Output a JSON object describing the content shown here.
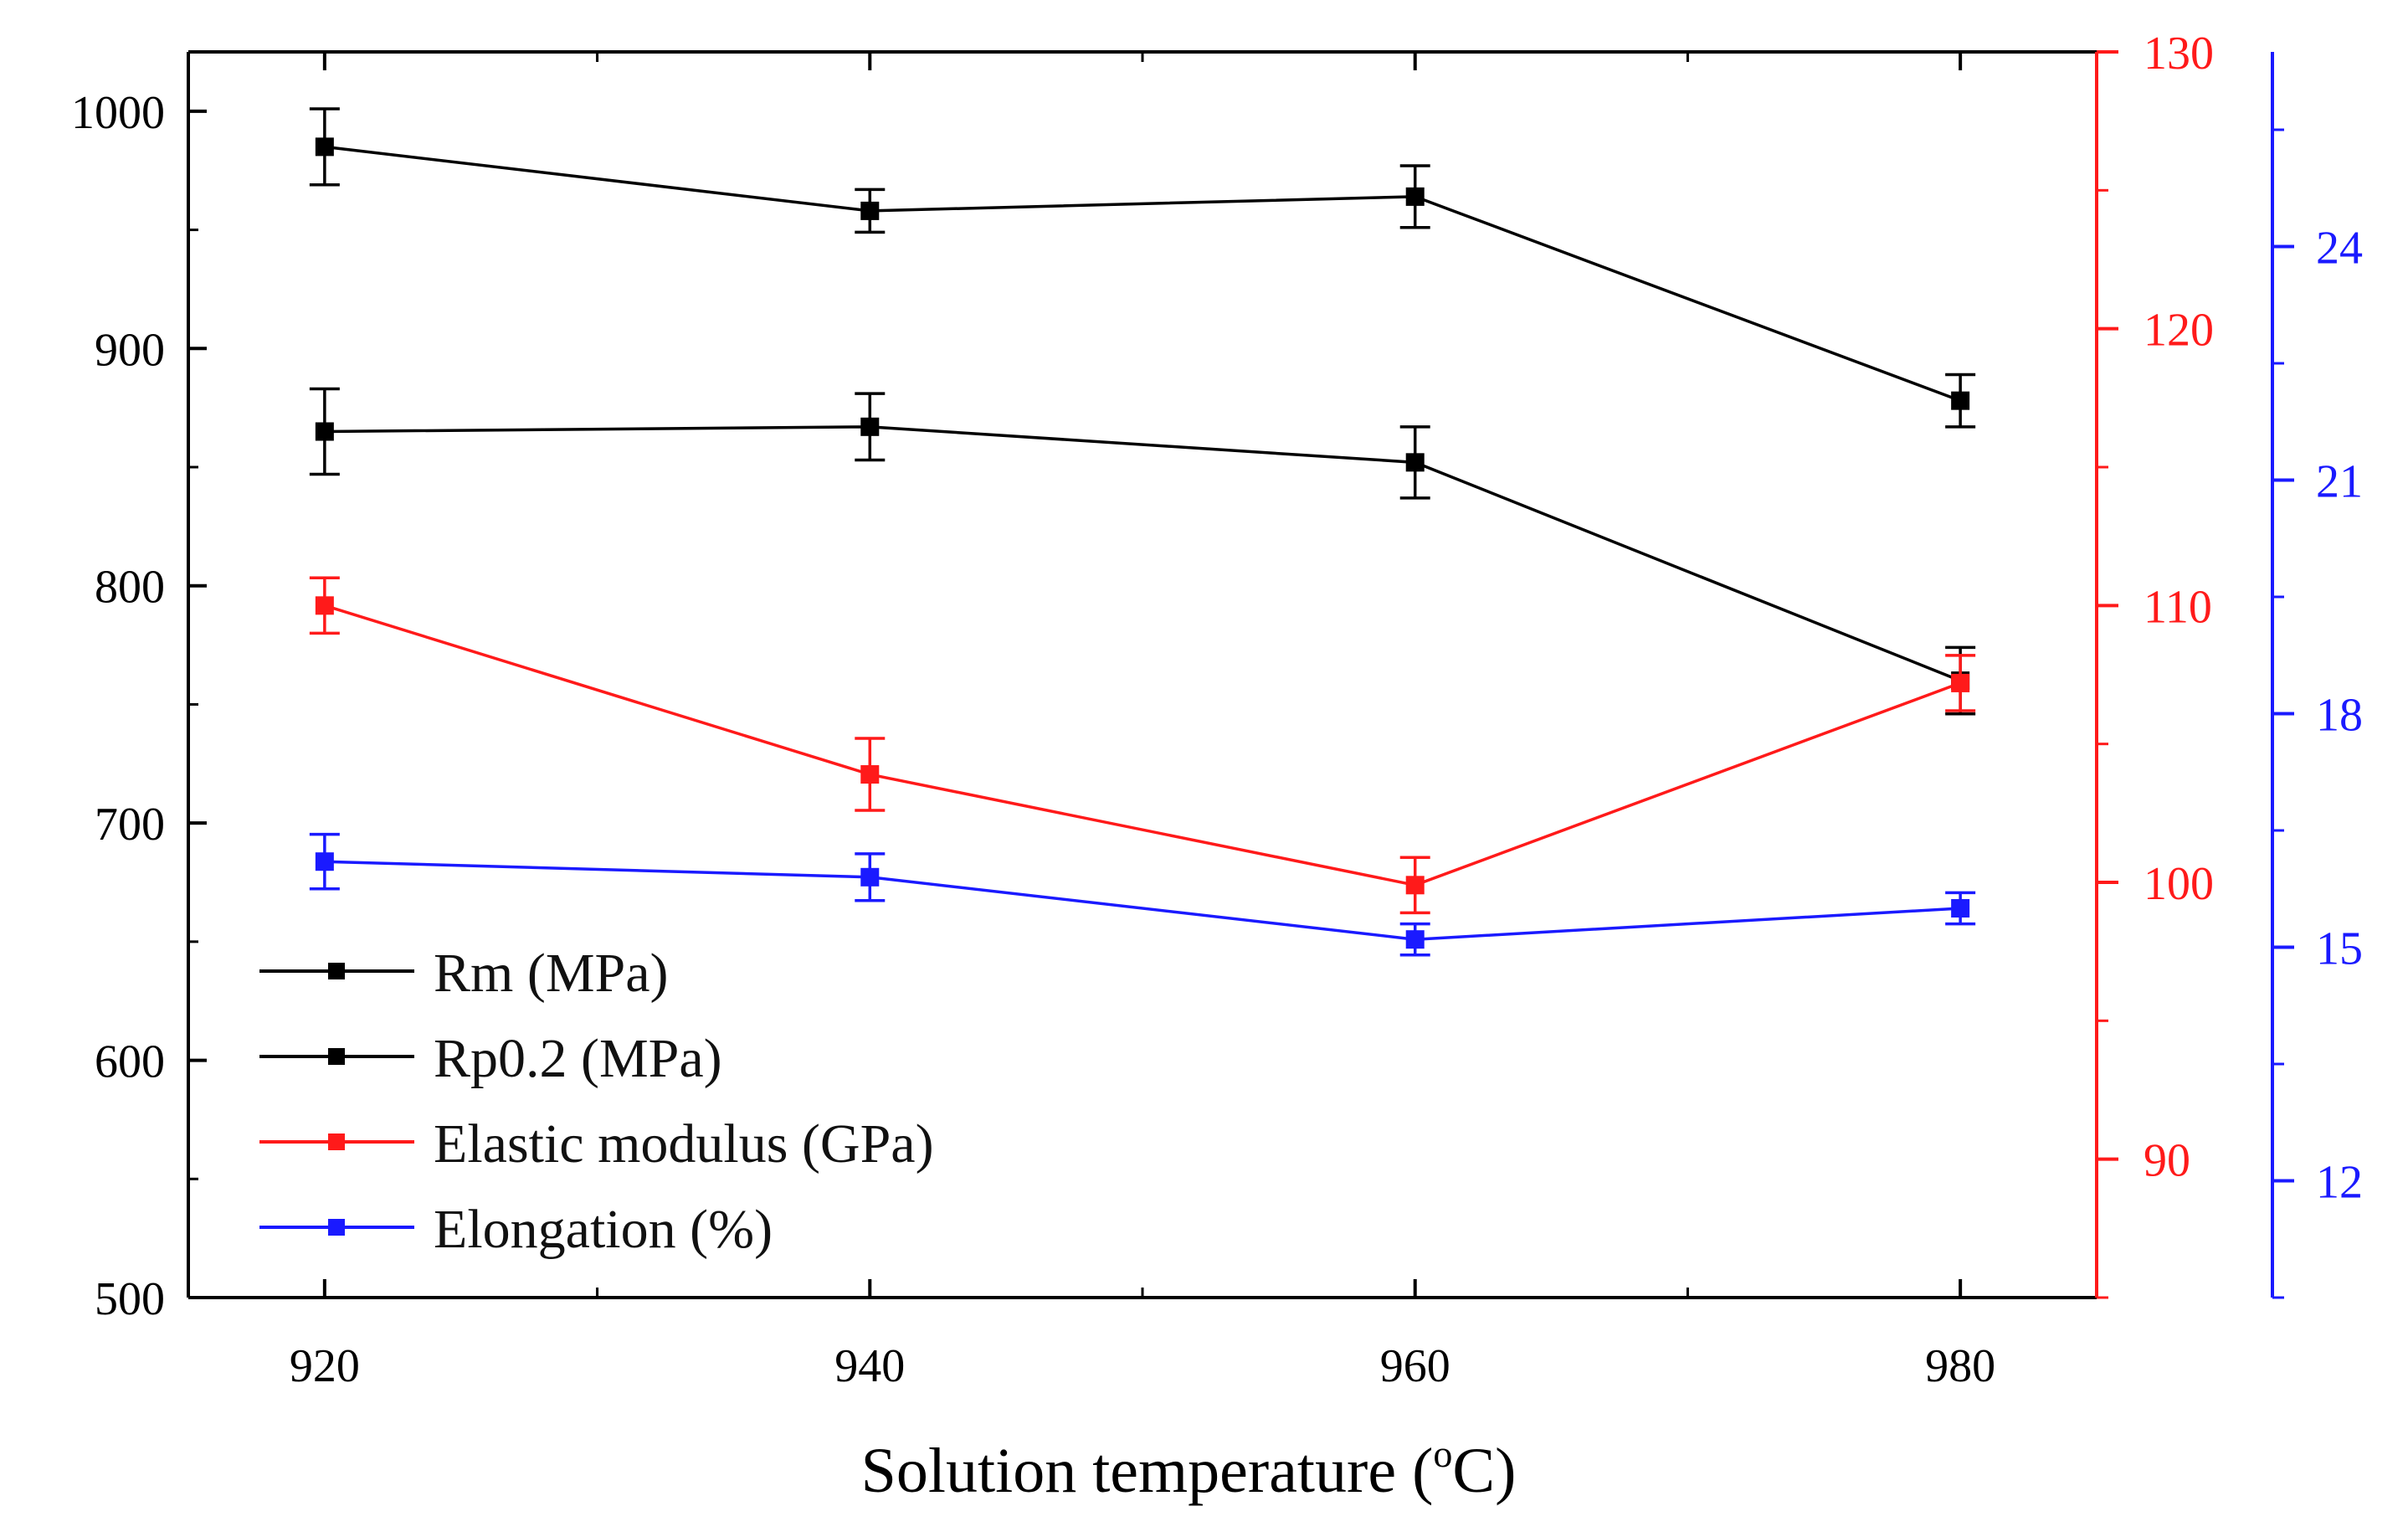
{
  "chart_data": {
    "type": "line",
    "x_values": [
      920,
      940,
      960,
      980
    ],
    "xlabel_main": "Solution temperature (",
    "xlabel_sup": "o",
    "xlabel_tail": "C)",
    "xlim": [
      915,
      985
    ],
    "x_ticks": [
      "920",
      "940",
      "960",
      "980"
    ],
    "axes": {
      "left": {
        "ylim": [
          500,
          1025
        ],
        "ticks": [
          "500",
          "600",
          "700",
          "800",
          "900",
          "1000"
        ],
        "color": "#000000"
      },
      "right1": {
        "ylim": [
          85,
          130
        ],
        "ticks": [
          "90",
          "100",
          "110",
          "120",
          "130"
        ],
        "color": "#ff1a1a"
      },
      "right2": {
        "ylim": [
          10.5,
          26.5
        ],
        "ticks": [
          "12",
          "15",
          "18",
          "21",
          "24"
        ],
        "color": "#1a1aff"
      }
    },
    "series": [
      {
        "name": "Rm (MPa)",
        "axis": "left",
        "color": "#000000",
        "values": [
          985,
          958,
          964,
          878
        ],
        "errors": [
          16,
          9,
          13,
          11
        ]
      },
      {
        "name": "Rp0.2 (MPa)",
        "axis": "left",
        "color": "#000000",
        "values": [
          865,
          867,
          852,
          760
        ],
        "errors": [
          18,
          14,
          15,
          14
        ]
      },
      {
        "name": "Elastic modulus (GPa)",
        "axis": "right1",
        "color": "#ff1a1a",
        "values": [
          110.0,
          103.9,
          99.9,
          107.2
        ],
        "errors": [
          1.0,
          1.3,
          1.0,
          1.0
        ]
      },
      {
        "name": "Elongation (%)",
        "axis": "right2",
        "color": "#1a1aff",
        "values": [
          16.1,
          15.9,
          15.1,
          15.5
        ],
        "errors": [
          0.35,
          0.3,
          0.2,
          0.2
        ]
      }
    ],
    "grid": false,
    "legend_position": "bottom-left"
  }
}
